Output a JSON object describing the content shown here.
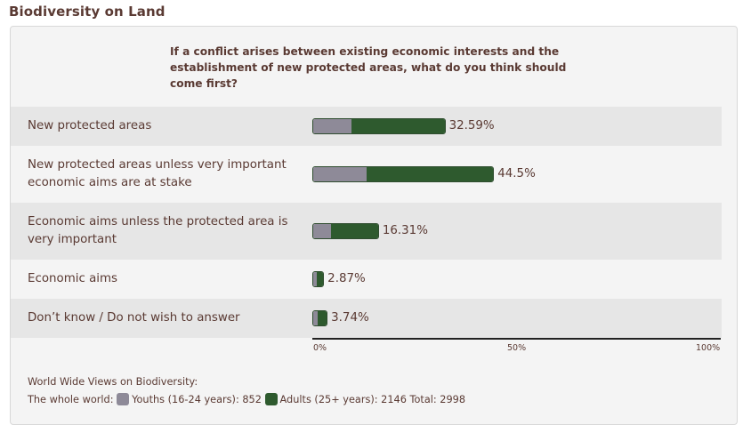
{
  "page": {
    "title": "Biodiversity on Land"
  },
  "question": "If a conflict arises between existing economic interests and the establishment of new protected areas, what do you think should come first?",
  "chart_data": {
    "type": "bar",
    "orientation": "horizontal",
    "stacked": true,
    "categories": [
      "New protected areas",
      "New protected areas unless very important economic aims are at stake",
      "Economic aims unless the protected area is very important",
      "Economic aims",
      "Don’t know / Do not wish to answer"
    ],
    "totals": [
      32.59,
      44.5,
      16.31,
      2.87,
      3.74
    ],
    "value_labels": [
      "32.59%",
      "44.5%",
      "16.31%",
      "2.87%",
      "3.74%"
    ],
    "series": [
      {
        "name": "Youths (16-24 years): 852",
        "values": [
          9.3,
          13.1,
          4.3,
          0.9,
          1.0
        ],
        "color": "#8e8a98"
      },
      {
        "name": "Adults (25+ years): 2146",
        "values": [
          23.29,
          31.4,
          12.01,
          1.97,
          2.74
        ],
        "color": "#2e5a2e"
      }
    ],
    "xlim": [
      0,
      100
    ],
    "ticks": [
      "0%",
      "50%",
      "100%"
    ],
    "legend_placement": "bottom"
  },
  "footer": {
    "source": "World Wide Views on Biodiversity:",
    "prefix": "The whole world:",
    "youth_label": "Youths (16-24 years): 852",
    "adult_label": "Adults (25+ years): 2146",
    "total_label": "Total: 2998"
  }
}
